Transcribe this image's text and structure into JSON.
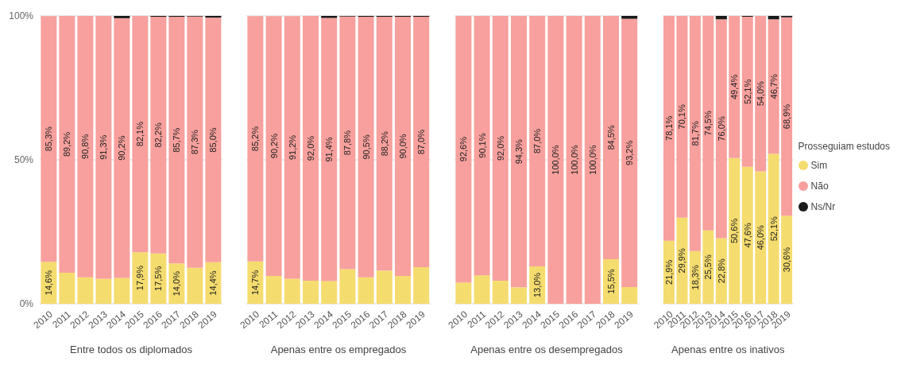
{
  "chart_data": [
    {
      "type": "bar",
      "stacked": true,
      "xlabel": "Entre todos os diplomados",
      "categories": [
        "2010",
        "2011",
        "2012",
        "2013",
        "2014",
        "2015",
        "2016",
        "2017",
        "2018",
        "2019"
      ],
      "ylim": [
        0,
        100
      ],
      "yticks": [
        {
          "value": 0,
          "label": "0%"
        },
        {
          "value": 50,
          "label": "50%"
        },
        {
          "value": 100,
          "label": "100%"
        }
      ],
      "grid": "y",
      "series": [
        {
          "color": "#f5dc6e",
          "values": [
            14.6,
            10.8,
            9.2,
            8.7,
            9.0,
            17.9,
            17.5,
            14.0,
            12.5,
            14.4
          ],
          "value_labels": [
            "14,6%",
            null,
            null,
            null,
            null,
            "17,9%",
            "17,5%",
            "14,0%",
            null,
            "14,4%"
          ]
        },
        {
          "color": "#f7a09d",
          "values": [
            85.3,
            89.2,
            90.8,
            91.3,
            90.2,
            82.1,
            82.2,
            85.7,
            87.3,
            85.0
          ],
          "value_labels": [
            "85,3%",
            "89,2%",
            "90,8%",
            "91,3%",
            "90,2%",
            "82,1%",
            "82,2%",
            "85,7%",
            "87,3%",
            "85,0%"
          ]
        },
        {
          "color": "#1a1a1a",
          "values": [
            null,
            0,
            0,
            0,
            0.8,
            0,
            0.3,
            0.3,
            0.2,
            0.6
          ]
        }
      ]
    },
    {
      "type": "bar",
      "stacked": true,
      "xlabel": "Apenas entre os empregados",
      "categories": [
        "2010",
        "2011",
        "2012",
        "2013",
        "2014",
        "2015",
        "2016",
        "2017",
        "2018",
        "2019"
      ],
      "ylim": [
        0,
        100
      ],
      "yticks": [
        {
          "value": 0,
          "label": null
        },
        {
          "value": 50,
          "label": null
        },
        {
          "value": 100,
          "label": null
        }
      ],
      "grid": "y",
      "tick_labels": "x",
      "series": [
        {
          "color": "#f5dc6e",
          "values": [
            14.7,
            9.7,
            8.7,
            8.0,
            7.9,
            12.0,
            9.2,
            11.5,
            9.7,
            12.7
          ],
          "value_labels": [
            "14,7%",
            null,
            null,
            null,
            null,
            null,
            null,
            null,
            null,
            null
          ]
        },
        {
          "color": "#f7a09d",
          "values": [
            85.2,
            90.2,
            91.2,
            92.0,
            91.4,
            87.8,
            90.5,
            88.2,
            90.0,
            87.0
          ],
          "value_labels": [
            "85,2%",
            "90,2%",
            "91,2%",
            "92,0%",
            "91,4%",
            "87,8%",
            "90,5%",
            "88,2%",
            "90,0%",
            "87,0%"
          ]
        },
        {
          "color": "#1a1a1a",
          "values": [
            null,
            null,
            null,
            0,
            0.7,
            0.2,
            0.3,
            0.3,
            0.3,
            0.3
          ]
        }
      ]
    },
    {
      "type": "bar",
      "stacked": true,
      "xlabel": "Apenas entre os desempregados",
      "categories": [
        "2010",
        "2011",
        "2012",
        "2013",
        "2014",
        "2015",
        "2016",
        "2017",
        "2018",
        "2019"
      ],
      "ylim": [
        0,
        100
      ],
      "yticks": [
        {
          "value": 0,
          "label": null
        },
        {
          "value": 50,
          "label": null
        },
        {
          "value": 100,
          "label": null
        }
      ],
      "grid": "y",
      "tick_labels": "x",
      "series": [
        {
          "color": "#f5dc6e",
          "values": [
            7.4,
            9.9,
            8.0,
            5.7,
            13.0,
            0,
            0,
            0,
            15.5,
            5.8
          ],
          "value_labels": [
            null,
            null,
            null,
            null,
            "13,0%",
            null,
            null,
            null,
            "15,5%",
            null
          ]
        },
        {
          "color": "#f7a09d",
          "values": [
            92.6,
            90.1,
            92.0,
            94.3,
            87.0,
            100.0,
            100.0,
            100.0,
            84.5,
            93.2
          ],
          "value_labels": [
            "92,6%",
            "90,1%",
            "92,0%",
            "94,3%",
            "87,0%",
            "100,0%",
            "100,0%",
            "100,0%",
            "84,5%",
            "93,2%"
          ]
        },
        {
          "color": "#1a1a1a",
          "values": [
            0,
            0,
            0,
            0,
            0,
            0,
            0,
            0,
            0,
            1.0
          ]
        }
      ]
    },
    {
      "type": "bar",
      "stacked": true,
      "xlabel": "Apenas entre os inativos",
      "categories": [
        "2010",
        "2011",
        "2012",
        "2013",
        "2014",
        "2015",
        "2016",
        "2017",
        "2018",
        "2019"
      ],
      "ylim": [
        0,
        100
      ],
      "yticks": [
        {
          "value": 0,
          "label": null
        },
        {
          "value": 50,
          "label": null
        },
        {
          "value": 100,
          "label": null
        }
      ],
      "grid": "y",
      "tick_labels": "x",
      "legend": "right",
      "legend_title": "Prosseguiam estudos",
      "series": [
        {
          "name": "Sim",
          "color": "#f5dc6e",
          "values": [
            21.9,
            29.9,
            18.3,
            25.5,
            22.8,
            50.6,
            47.6,
            46.0,
            52.1,
            30.6
          ],
          "value_labels": [
            "21,9%",
            "29,9%",
            "18,3%",
            "25,5%",
            "22,8%",
            "50,6%",
            "47,6%",
            "46,0%",
            "52,1%",
            "30,6%"
          ]
        },
        {
          "name": "Não",
          "color": "#f7a09d",
          "values": [
            78.1,
            70.1,
            81.7,
            74.5,
            76.0,
            49.4,
            52.1,
            54.0,
            46.7,
            68.9
          ],
          "value_labels": [
            "78,1%",
            "70,1%",
            "81,7%",
            "74,5%",
            "76,0%",
            "49,4%",
            "52,1%",
            "54,0%",
            "46,7%",
            "68,9%"
          ]
        },
        {
          "name": "Ns/Nr",
          "color": "#1a1a1a",
          "values": [
            0,
            0,
            0,
            0,
            1.2,
            0,
            0.3,
            0,
            1.2,
            0.5
          ]
        }
      ]
    }
  ]
}
